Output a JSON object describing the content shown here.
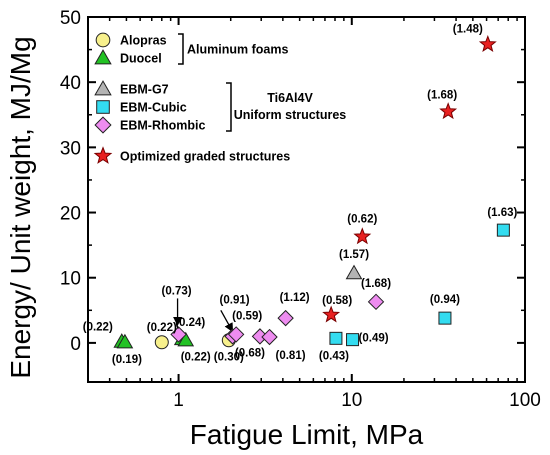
{
  "chart_data": {
    "type": "scatter",
    "xlabel": "Fatigue Limit, MPa",
    "ylabel": "Energy/ Unit weight, MJ/Mg",
    "xscale": "log",
    "xlim": [
      0.3,
      100
    ],
    "ylim": [
      -6,
      50
    ],
    "x_ticks": [
      1,
      10,
      100
    ],
    "x_tick_labels": [
      "1",
      "10",
      "100"
    ],
    "y_ticks": [
      0,
      10,
      20,
      30,
      40,
      50
    ],
    "y_tick_labels": [
      "0",
      "10",
      "20",
      "30",
      "40",
      "50"
    ],
    "grid": false,
    "legend_placement": "top-left",
    "legend_groups": [
      {
        "label": "Aluminum foams",
        "series": [
          "Alopras",
          "Duocel"
        ]
      },
      {
        "label": "Ti6Al4V\nUniform structures",
        "series": [
          "EBM-G7",
          "EBM-Cubic",
          "EBM-Rhombic"
        ]
      }
    ],
    "series": [
      {
        "name": "Alopras",
        "marker": "circle",
        "color": "#f7f08c",
        "points": [
          {
            "x": 0.8,
            "y": 0.1,
            "label": "(0.22)"
          },
          {
            "x": 1.95,
            "y": 0.4,
            "label": "(0.30)"
          }
        ]
      },
      {
        "name": "Duocel",
        "marker": "triangle",
        "color": "#22c224",
        "points": [
          {
            "x": 0.47,
            "y": 0.2,
            "label": "(0.22)"
          },
          {
            "x": 0.49,
            "y": 0.1,
            "label": "(0.19)"
          },
          {
            "x": 1.05,
            "y": 0.6,
            "label": "(0.24)"
          },
          {
            "x": 1.1,
            "y": 0.4,
            "label": "(0.22)"
          }
        ]
      },
      {
        "name": "EBM-G7",
        "marker": "triangle",
        "color": "#b4b4b4",
        "points": [
          {
            "x": 10.3,
            "y": 10.7,
            "label": "(1.57)"
          }
        ]
      },
      {
        "name": "EBM-Cubic",
        "marker": "square",
        "color": "#33dcf0",
        "points": [
          {
            "x": 8.1,
            "y": 0.7,
            "label": "(0.43)"
          },
          {
            "x": 10.1,
            "y": 0.5,
            "label": "(0.49)"
          },
          {
            "x": 34.5,
            "y": 3.8,
            "label": "(0.94)"
          },
          {
            "x": 75.0,
            "y": 17.3,
            "label": "(1.63)"
          }
        ]
      },
      {
        "name": "EBM-Rhombic",
        "marker": "diamond",
        "color": "#ee8cf0",
        "points": [
          {
            "x": 1.0,
            "y": 1.3,
            "label": "(0.73)"
          },
          {
            "x": 2.05,
            "y": 1.0,
            "label": "(0.91)"
          },
          {
            "x": 2.15,
            "y": 1.3,
            "label": "(0.59)"
          },
          {
            "x": 2.95,
            "y": 1.0,
            "label": "(0.68)"
          },
          {
            "x": 3.35,
            "y": 0.9,
            "label": "(0.81)"
          },
          {
            "x": 4.15,
            "y": 3.8,
            "label": "(1.12)"
          },
          {
            "x": 13.8,
            "y": 6.3,
            "label": "(1.68)"
          }
        ]
      },
      {
        "name": "Optimized graded structures",
        "marker": "star",
        "color": "#e82020",
        "points": [
          {
            "x": 7.6,
            "y": 4.3,
            "label": "(0.58)"
          },
          {
            "x": 11.5,
            "y": 16.3,
            "label": "(0.62)"
          },
          {
            "x": 36.0,
            "y": 35.5,
            "label": "(1.68)"
          },
          {
            "x": 61.0,
            "y": 45.8,
            "label": "(1.48)"
          }
        ]
      }
    ]
  }
}
